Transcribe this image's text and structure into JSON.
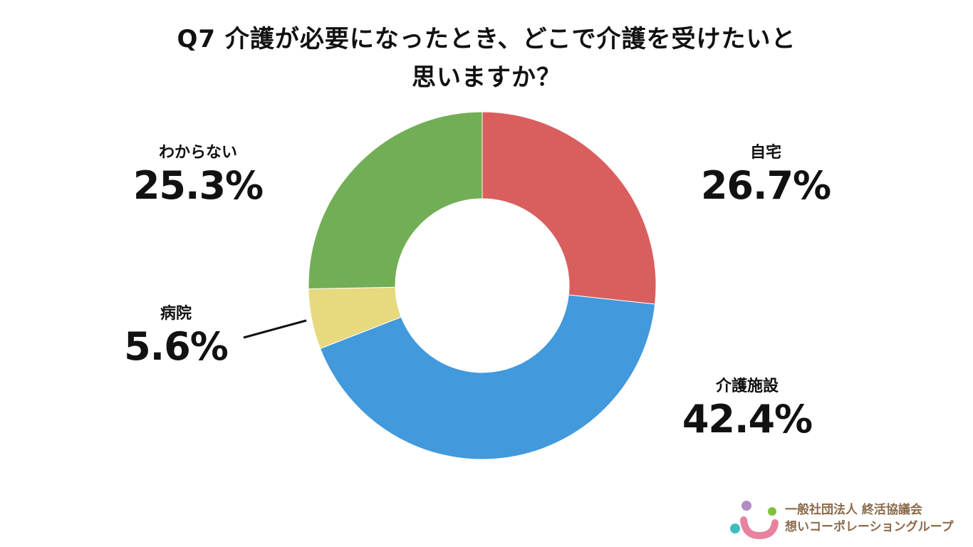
{
  "chart_data": {
    "type": "pie",
    "donut": true,
    "title_lines": [
      "Q7 介護が必要になったとき、どこで介護を受けたいと",
      "思いますか？"
    ],
    "slices": [
      {
        "label": "自宅",
        "value": 26.7,
        "display": "26.7%",
        "color": "#d95f5e"
      },
      {
        "label": "介護施設",
        "value": 42.4,
        "display": "42.4%",
        "color": "#4299dc"
      },
      {
        "label": "病院",
        "value": 5.6,
        "display": "5.6%",
        "color": "#e6d97e"
      },
      {
        "label": "わからない",
        "value": 25.3,
        "display": "25.3%",
        "color": "#72ae56"
      }
    ],
    "start_angle": "12 o'clock",
    "direction": "clockwise",
    "legend": "none"
  },
  "branding": {
    "line1": "一般社団法人 終活協議会",
    "line2": "想いコーポレーショングループ",
    "colors": {
      "dot_purple": "#b18cc4",
      "dot_green": "#7fc23a",
      "dot_teal": "#3fbdbd",
      "arc_pink": "#e8839e",
      "text": "#8a6a4a"
    }
  }
}
